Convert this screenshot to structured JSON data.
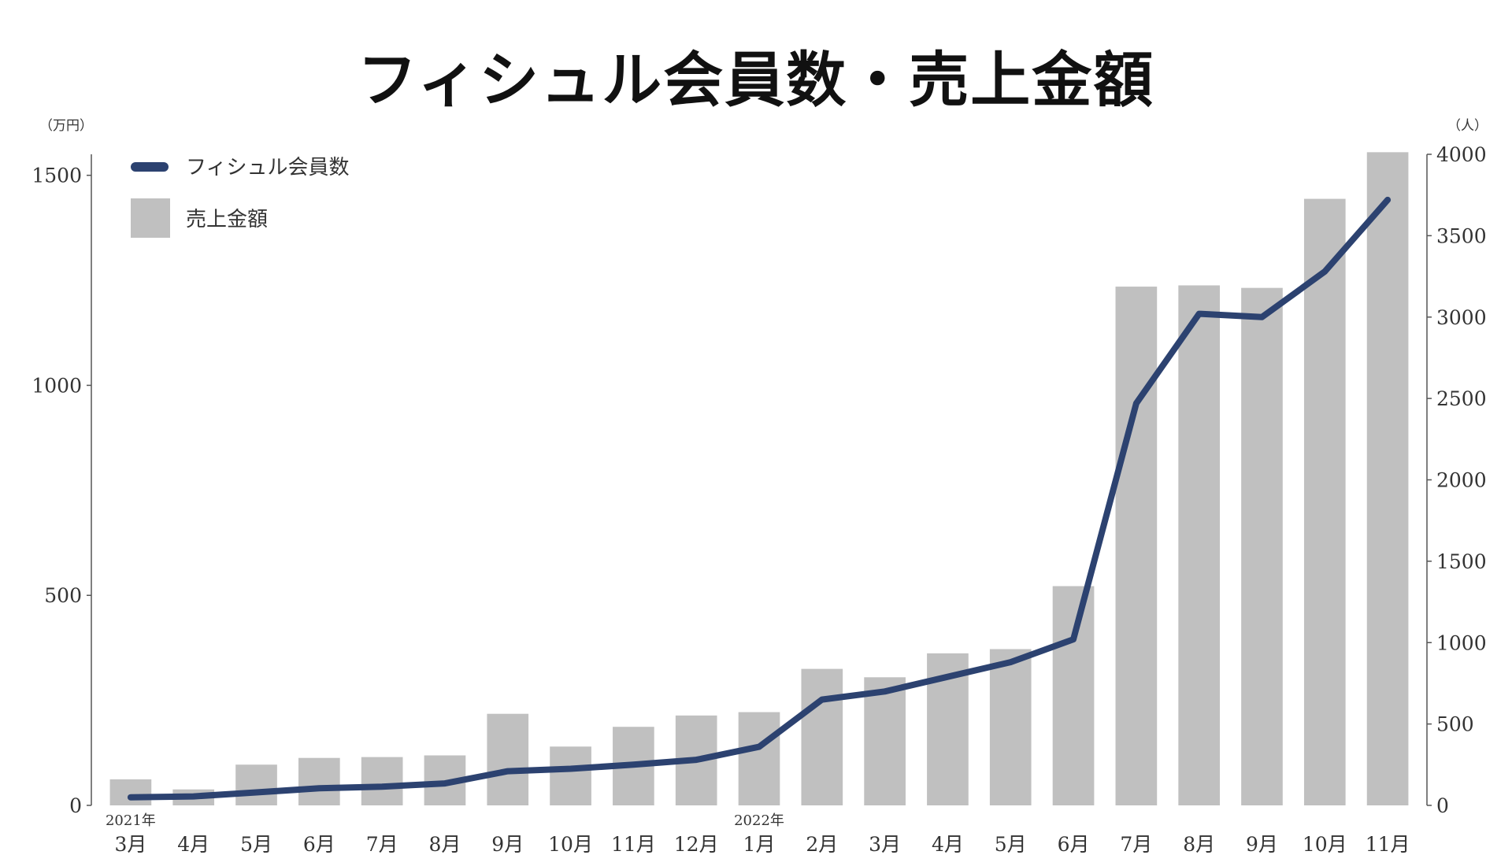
{
  "chart_data": {
    "type": "bar+line",
    "title": "フィシュル会員数・売上金額",
    "y_left_unit": "（万円）",
    "y_right_unit": "（人）",
    "ylim_left": [
      0,
      1550
    ],
    "ylim_right": [
      0,
      4000
    ],
    "yticks_left": [
      "0",
      "500",
      "1000",
      "1500"
    ],
    "yticks_right": [
      "0",
      "500",
      "1000",
      "1500",
      "2000",
      "2500",
      "3000",
      "3500",
      "4000"
    ],
    "categories": [
      "3月",
      "4月",
      "5月",
      "6月",
      "7月",
      "8月",
      "9月",
      "10月",
      "11月",
      "12月",
      "1月",
      "2月",
      "3月",
      "4月",
      "5月",
      "6月",
      "7月",
      "8月",
      "9月",
      "10月",
      "11月"
    ],
    "year_labels": [
      {
        "index": 0,
        "label": "2021年"
      },
      {
        "index": 10,
        "label": "2022年"
      }
    ],
    "series": [
      {
        "name": "売上金額",
        "kind": "bar",
        "axis": "left",
        "color": "#c0c0c0",
        "values": [
          62,
          38,
          97,
          113,
          115,
          119,
          218,
          140,
          187,
          214,
          222,
          325,
          305,
          362,
          372,
          522,
          1235,
          1238,
          1232,
          1444,
          1555
        ]
      },
      {
        "name": "フィシュル会員数",
        "kind": "line",
        "axis": "right",
        "color": "#2c4270",
        "values": [
          50,
          55,
          80,
          105,
          115,
          135,
          210,
          225,
          250,
          280,
          360,
          650,
          700,
          790,
          880,
          1020,
          2470,
          3020,
          3000,
          3280,
          3720
        ]
      }
    ],
    "legend": [
      {
        "label": "フィシュル会員数",
        "kind": "line"
      },
      {
        "label": "売上金額",
        "kind": "bar"
      }
    ]
  }
}
